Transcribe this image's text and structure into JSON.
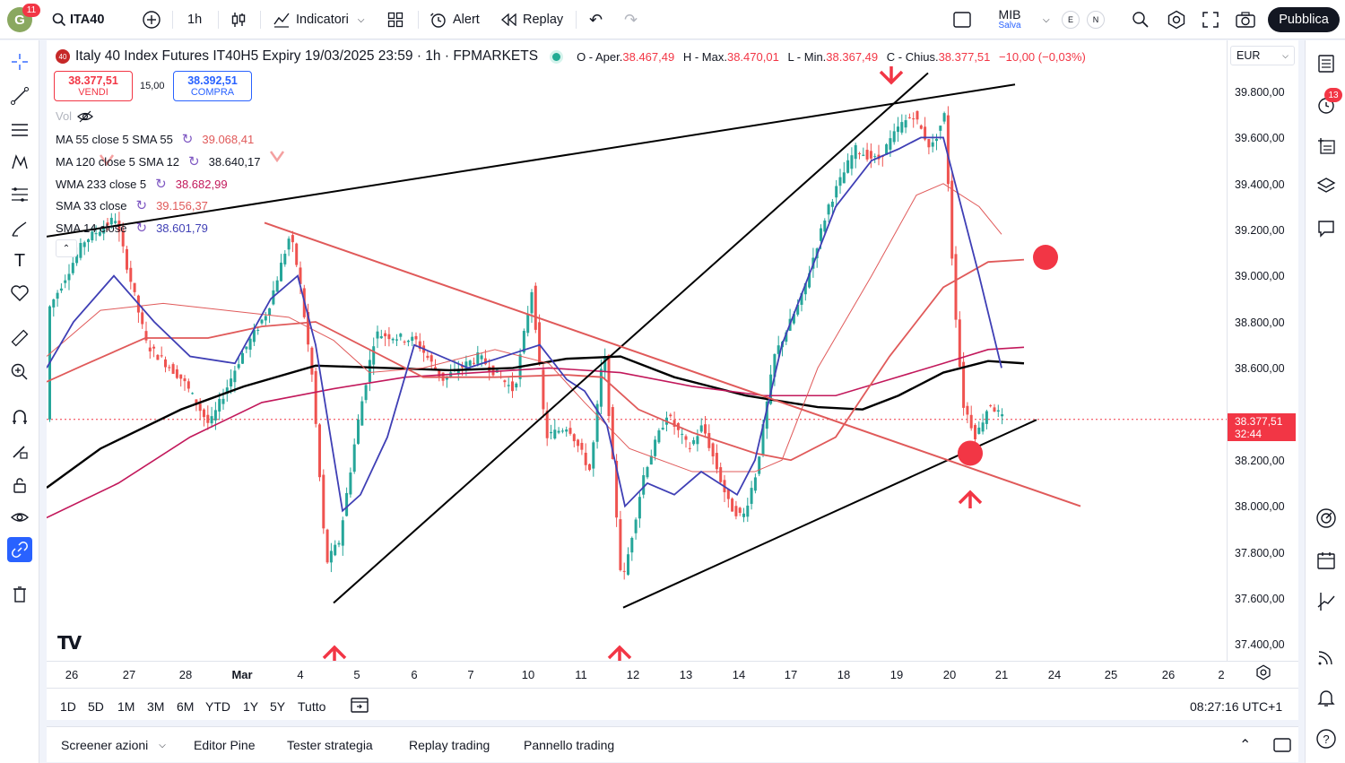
{
  "topbar": {
    "avatar_badge": "11",
    "symbol": "ITA40",
    "interval": "1h",
    "indicators": "Indicatori",
    "alert": "Alert",
    "replay": "Replay",
    "layout_name": "MIB",
    "layout_sub": "Salva",
    "e_label": "E",
    "n_label": "N",
    "publish": "Pubblica"
  },
  "legend": {
    "badge": "40",
    "title": "Italy 40 Index Futures IT40H5 Expiry 19/03/2025 23:59 · 1h · FPMARKETS",
    "o_label": "O - Aper.",
    "o_val": "38.467,49",
    "h_label": "H - Max.",
    "h_val": "38.470,01",
    "l_label": "L - Min.",
    "l_val": "38.367,49",
    "c_label": "C - Chius.",
    "c_val": "38.377,51",
    "change": "−10,00 (−0,03%)",
    "sell_price": "38.377,51",
    "sell_label": "VENDI",
    "spread": "15,00",
    "buy_price": "38.392,51",
    "buy_label": "COMPRA",
    "vol": "Vol",
    "indicators": [
      {
        "label": "MA 55 close 5 SMA 55",
        "value": "39.068,41",
        "color": "#e05a5a"
      },
      {
        "label": "MA 120 close 5 SMA 12",
        "value": "38.640,17",
        "color": "#131722"
      },
      {
        "label": "WMA 233 close 5",
        "value": "38.682,99",
        "color": "#c2185b"
      },
      {
        "label": "SMA 33 close",
        "value": "39.156,37",
        "color": "#e05a5a"
      },
      {
        "label": "SMA 14 close",
        "value": "38.601,79",
        "color": "#3f3fb5"
      }
    ]
  },
  "currency": "EUR",
  "price_axis": [
    "39.800,00",
    "39.600,00",
    "39.400,00",
    "39.200,00",
    "39.000,00",
    "38.800,00",
    "38.600,00",
    "38.200,00",
    "38.000,00",
    "37.800,00",
    "37.600,00",
    "37.400,00"
  ],
  "last_price": {
    "value": "38.377,51",
    "countdown": "32:44"
  },
  "time_axis": [
    "26",
    "27",
    "28",
    "Mar",
    "4",
    "5",
    "6",
    "7",
    "10",
    "11",
    "12",
    "13",
    "14",
    "17",
    "18",
    "19",
    "20",
    "21",
    "24",
    "25",
    "26",
    "2"
  ],
  "ranges": [
    "1D",
    "5D",
    "1M",
    "3M",
    "6M",
    "YTD",
    "1Y",
    "5Y",
    "Tutto"
  ],
  "clock": "08:27:16 UTC+1",
  "bottom_tabs": [
    "Screener azioni",
    "Editor Pine",
    "Tester strategia",
    "Replay trading",
    "Pannello trading"
  ],
  "right_badge": "13",
  "colors": {
    "up": "#26a69a",
    "down": "#ef5350",
    "accent": "#2962ff",
    "marker": "#f23645"
  }
}
